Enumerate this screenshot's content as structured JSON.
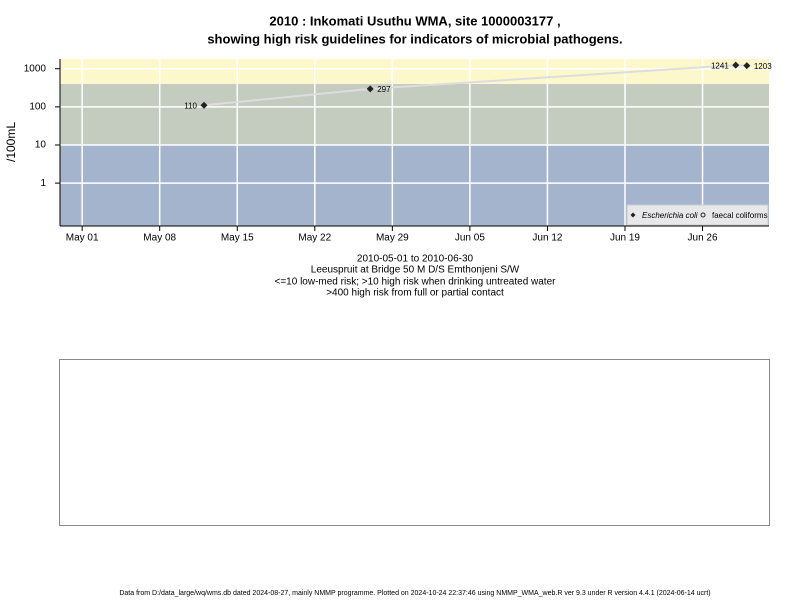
{
  "chart_data": {
    "type": "scatter",
    "title": "2010 : Inkomati Usuthu WMA, site 1000003177 ,",
    "subtitle": "showing high risk guidelines for indicators of microbial pathogens.",
    "ylabel": "/100mL",
    "log_y": true,
    "grid": true,
    "legend": "bottom-right",
    "xlim": [
      "2010-04-29",
      "2010-07-02"
    ],
    "xticks": [
      {
        "value": "2010-05-01",
        "label": "May 01"
      },
      {
        "value": "2010-05-08",
        "label": "May 08"
      },
      {
        "value": "2010-05-15",
        "label": "May 15"
      },
      {
        "value": "2010-05-22",
        "label": "May 22"
      },
      {
        "value": "2010-05-29",
        "label": "May 29"
      },
      {
        "value": "2010-06-05",
        "label": "Jun 05"
      },
      {
        "value": "2010-06-12",
        "label": "Jun 12"
      },
      {
        "value": "2010-06-19",
        "label": "Jun 19"
      },
      {
        "value": "2010-06-26",
        "label": "Jun 26"
      }
    ],
    "ylim": [
      0.075,
      1800
    ],
    "yticks": [
      1,
      10,
      100,
      1000
    ],
    "thresholds": [
      10,
      400
    ],
    "band_colors": [
      "#a3b4cc",
      "#c3ccbf",
      "#fdf8cc"
    ],
    "line_color": "#dddddd",
    "series": [
      {
        "name": "Escherichia coli",
        "color": "#222222",
        "marker": "filled-diamond",
        "x": [
          "2010-05-12",
          "2010-05-27",
          "2010-06-29",
          "2010-06-30"
        ],
        "values": [
          110,
          297,
          1241,
          1203
        ]
      },
      {
        "name": "faecal coliforms",
        "color": "#222222",
        "marker": "open-circle",
        "x": [],
        "values": []
      }
    ],
    "notes": [
      "2010-05-01 to 2010-06-30",
      "Leeuspruit at Bridge 50 M D/S Emthonjeni S/W",
      "<=10 low-med risk; >10 high risk when drinking untreated water",
      ">400 high risk from full or partial contact"
    ],
    "footer": "Data from D:/data_large/wq/wms.db dated 2024-08-27, mainly NMMP programme. Plotted on 2024-10-24 22:37:46 using NMMP_WMA_web.R ver 9.3 under R version 4.4.1 (2024-06-14 ucrt)"
  }
}
